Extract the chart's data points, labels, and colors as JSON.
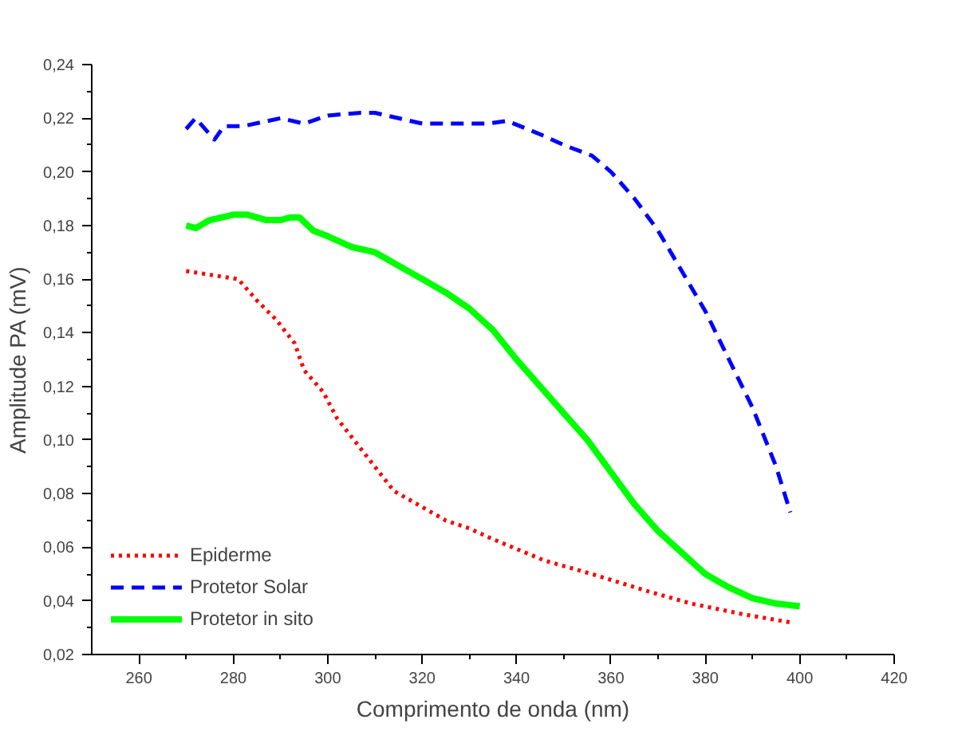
{
  "chart_data": {
    "type": "line",
    "xlabel": "Comprimento de onda (nm)",
    "ylabel": "Amplitude PA (mV)",
    "xlim": [
      250,
      420
    ],
    "xticks": [
      260,
      280,
      300,
      320,
      340,
      360,
      380,
      400,
      420
    ],
    "ylim": [
      0.02,
      0.24
    ],
    "yticks": [
      {
        "value": 0.02,
        "label": "0,02"
      },
      {
        "value": 0.04,
        "label": "0,04"
      },
      {
        "value": 0.06,
        "label": "0,06"
      },
      {
        "value": 0.08,
        "label": "0,08"
      },
      {
        "value": 0.1,
        "label": "0,10"
      },
      {
        "value": 0.12,
        "label": "0,12"
      },
      {
        "value": 0.14,
        "label": "0,14"
      },
      {
        "value": 0.16,
        "label": "0,16"
      },
      {
        "value": 0.18,
        "label": "0,18"
      },
      {
        "value": 0.2,
        "label": "0,20"
      },
      {
        "value": 0.22,
        "label": "0,22"
      },
      {
        "value": 0.24,
        "label": "0,24"
      }
    ],
    "grid": false,
    "legend": "bottom left",
    "marker": "none",
    "series": [
      {
        "name": "Epiderme",
        "color": "#ff0000",
        "line_style": "dotted",
        "x": [
          270,
          281,
          285,
          289,
          293,
          295,
          299,
          302,
          306,
          310,
          314,
          320,
          325,
          330,
          335,
          346,
          356,
          367,
          377,
          388,
          398
        ],
        "values": [
          0.163,
          0.16,
          0.152,
          0.145,
          0.136,
          0.126,
          0.118,
          0.108,
          0.099,
          0.09,
          0.081,
          0.075,
          0.07,
          0.067,
          0.063,
          0.055,
          0.05,
          0.044,
          0.039,
          0.035,
          0.032
        ]
      },
      {
        "name": "Protetor Solar",
        "color": "#0000ff",
        "line_style": "dashed",
        "x": [
          270,
          272,
          276,
          278,
          282,
          290,
          295,
          300,
          307,
          310,
          315,
          320,
          330,
          334,
          338,
          345,
          350,
          356,
          360,
          365,
          370,
          375,
          380,
          385,
          390,
          395,
          398
        ],
        "values": [
          0.216,
          0.22,
          0.212,
          0.217,
          0.217,
          0.22,
          0.218,
          0.221,
          0.222,
          0.222,
          0.22,
          0.218,
          0.218,
          0.218,
          0.219,
          0.214,
          0.21,
          0.206,
          0.2,
          0.19,
          0.178,
          0.163,
          0.148,
          0.13,
          0.112,
          0.09,
          0.073
        ]
      },
      {
        "name": "Protetor in sito",
        "color": "#00ff00",
        "line_style": "solid",
        "x": [
          270,
          272,
          275,
          280,
          283,
          287,
          290,
          292,
          294,
          297,
          300,
          305,
          310,
          315,
          320,
          325,
          330,
          335,
          340,
          345,
          350,
          355,
          360,
          365,
          370,
          375,
          380,
          385,
          390,
          395,
          400
        ],
        "values": [
          0.18,
          0.179,
          0.182,
          0.184,
          0.184,
          0.182,
          0.182,
          0.183,
          0.183,
          0.178,
          0.176,
          0.172,
          0.17,
          0.165,
          0.16,
          0.155,
          0.149,
          0.141,
          0.13,
          0.12,
          0.11,
          0.1,
          0.088,
          0.076,
          0.066,
          0.058,
          0.05,
          0.045,
          0.041,
          0.039,
          0.038
        ]
      }
    ]
  }
}
